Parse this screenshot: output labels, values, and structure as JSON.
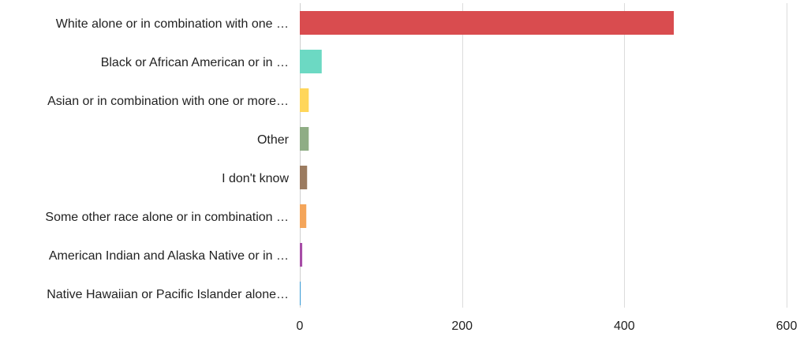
{
  "chart_data": {
    "type": "bar",
    "orientation": "horizontal",
    "title": "",
    "xlabel": "",
    "ylabel": "",
    "xlim": [
      0,
      600
    ],
    "xticks": [
      0,
      200,
      400,
      600
    ],
    "grid": true,
    "legend": "none",
    "categories": [
      "White alone or in combination with one …",
      "Black or African American or in …",
      "Asian or in combination with one or more…",
      "Other",
      "I don't know",
      "Some other race alone or in combination …",
      "American Indian and Alaska Native or in …",
      "Native Hawaiian or Pacific Islander alone…"
    ],
    "values": [
      461,
      27,
      11,
      11,
      9,
      8,
      3,
      1
    ],
    "colors": [
      "#d94c4f",
      "#6cd9c3",
      "#ffd65a",
      "#8fad85",
      "#9b7b60",
      "#f4a55a",
      "#a64ca6",
      "#3a9bd6"
    ]
  }
}
